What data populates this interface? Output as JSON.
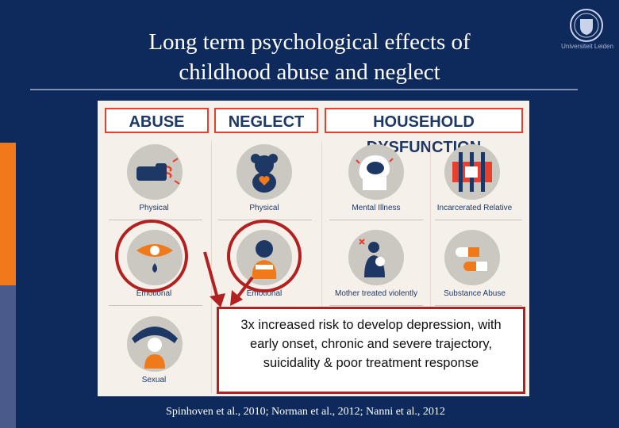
{
  "slide": {
    "title_line1": "Long term psychological effects of",
    "title_line2": "childhood abuse and neglect",
    "citation": "Spinhoven et al., 2010; Norman et al., 2012; Nanni et al., 2012",
    "logo_text": "Universiteit Leiden"
  },
  "infographic": {
    "headers": {
      "abuse": "ABUSE",
      "neglect": "NEGLECT",
      "household": "HOUSEHOLD DYSFUNCTION"
    },
    "labels": {
      "abuse_physical": "Physical",
      "abuse_emotional": "Emotional",
      "abuse_sexual": "Sexual",
      "neglect_physical": "Physical",
      "neglect_emotional": "Emotional",
      "mental_illness": "Mental Illness",
      "incarcerated_relative": "Incarcerated Relative",
      "mother_violence": "Mother treated violently",
      "substance_abuse": "Substance Abuse"
    }
  },
  "callout": {
    "text": "3x increased risk to develop depression, with early onset, chronic and severe trajectory, suicidality & poor treatment response"
  },
  "colors": {
    "background": "#0e2a5c",
    "accent_orange": "#f07a1a",
    "highlight_red": "#b32020",
    "header_red": "#e9402e"
  }
}
